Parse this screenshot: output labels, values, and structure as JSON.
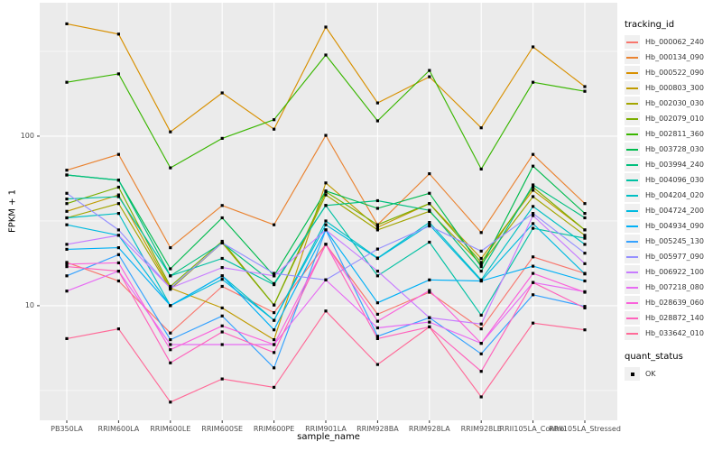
{
  "figure": {
    "background": "#FFFFFF",
    "panel_background": "#EBEBEB",
    "gridline_color": "#FFFFFF",
    "point_color": "#000000",
    "point_shape": "square"
  },
  "axes": {
    "x": {
      "label": "sample_name"
    },
    "y": {
      "label": "FPKM + 1",
      "scale": "log10",
      "tick_labels": [
        "100",
        "10"
      ],
      "tick_values": [
        100,
        10
      ]
    }
  },
  "legend": {
    "tracking_title": "tracking_id",
    "quant_title": "quant_status",
    "quant_items": [
      {
        "label": "OK",
        "marker": "black-square"
      }
    ]
  },
  "chart_data": {
    "type": "line",
    "title": "",
    "xlabel": "sample_name",
    "ylabel": "FPKM + 1",
    "y_scale": "log10",
    "ylim": [
      2.1,
      610
    ],
    "grid": true,
    "legend_position": "right",
    "point_marker": "black-square",
    "categories": [
      "PB350LA",
      "RRIM600LA",
      "RRIM600LE",
      "RRIM600SE",
      "RRIM600PE",
      "RRIM901LA",
      "RRIM928BA",
      "RRIM928LA",
      "RRIM928LE",
      "RRII105LA_Control",
      "RRII105LA_Stressed"
    ],
    "series": [
      {
        "name": "Hb_000062_240",
        "color": "#F8766D",
        "values": [
          18,
          14,
          6.9,
          13,
          9.1,
          23,
          8.9,
          12,
          7.3,
          19.4,
          15.5
        ]
      },
      {
        "name": "Hb_000134_090",
        "color": "#EA8331",
        "values": [
          63,
          78,
          22,
          39,
          30,
          101,
          30,
          60,
          27,
          78,
          40
        ]
      },
      {
        "name": "Hb_000522_090",
        "color": "#D89000",
        "values": [
          460,
          400,
          106,
          180,
          110,
          440,
          157,
          224,
          112,
          336,
          196
        ]
      },
      {
        "name": "Hb_000803_300",
        "color": "#C09B00",
        "values": [
          36,
          45,
          12.7,
          9.7,
          6.3,
          53,
          29,
          40,
          19,
          48,
          28
        ]
      },
      {
        "name": "Hb_002030_030",
        "color": "#A3A500",
        "values": [
          33,
          40,
          12.5,
          23.5,
          10.1,
          45,
          28,
          36,
          17.5,
          44,
          26
        ]
      },
      {
        "name": "Hb_002079_010",
        "color": "#7CAE00",
        "values": [
          40,
          50,
          13,
          24,
          10.1,
          47,
          30,
          40,
          18,
          50,
          28
        ]
      },
      {
        "name": "Hb_002811_360",
        "color": "#39B600",
        "values": [
          208,
          233,
          65,
          97,
          125,
          301,
          123,
          244,
          64,
          208,
          184
        ]
      },
      {
        "name": "Hb_003728_030",
        "color": "#00BB4E",
        "values": [
          59,
          55,
          16.5,
          33,
          15,
          47.5,
          37.5,
          46,
          17,
          66.5,
          35
        ]
      },
      {
        "name": "Hb_003994_240",
        "color": "#00BF7D",
        "values": [
          59,
          55,
          15,
          23.5,
          13.5,
          39,
          41.6,
          36.5,
          16,
          51.6,
          33
        ]
      },
      {
        "name": "Hb_004096_030",
        "color": "#00C1A3",
        "values": [
          42.6,
          44,
          15,
          19,
          13.3,
          39,
          15,
          23.7,
          8.8,
          28.6,
          25
        ]
      },
      {
        "name": "Hb_004204_020",
        "color": "#00BFC4",
        "values": [
          33,
          35,
          10,
          15,
          8.2,
          31.6,
          19.1,
          31,
          14.2,
          38.5,
          23
        ]
      },
      {
        "name": "Hb_004724_200",
        "color": "#00BAE0",
        "values": [
          30,
          26,
          10,
          14.3,
          8.2,
          30,
          19,
          30,
          14,
          30.5,
          15.4
        ]
      },
      {
        "name": "Hb_004934_090",
        "color": "#00B0F6",
        "values": [
          21.5,
          22,
          10,
          15,
          7.2,
          28,
          10.4,
          14.2,
          14,
          17.1,
          14
        ]
      },
      {
        "name": "Hb_005245_130",
        "color": "#35A2FF",
        "values": [
          15,
          20,
          6.3,
          8.7,
          4.3,
          28,
          6.6,
          8.5,
          5.2,
          11.6,
          9.9
        ]
      },
      {
        "name": "Hb_005977_090",
        "color": "#9590FF",
        "values": [
          46,
          28,
          12.7,
          23.5,
          15.5,
          14.2,
          21.6,
          29.5,
          21,
          35,
          20.4
        ]
      },
      {
        "name": "Hb_006922_100",
        "color": "#C77CFF",
        "values": [
          23,
          26,
          12.7,
          16.8,
          15,
          28,
          16,
          8.5,
          7.8,
          34,
          17.7
        ]
      },
      {
        "name": "Hb_007218_080",
        "color": "#E76BF3",
        "values": [
          12.2,
          16,
          5.9,
          5.9,
          5.9,
          14.2,
          7.4,
          8,
          6,
          13.7,
          12.1
        ]
      },
      {
        "name": "Hb_028639_060",
        "color": "#FA62DB",
        "values": [
          17.6,
          17.9,
          5.5,
          7.6,
          5.9,
          23,
          8.1,
          12.3,
          6,
          15.5,
          12
        ]
      },
      {
        "name": "Hb_028872_140",
        "color": "#FF62BC",
        "values": [
          17,
          16,
          4.6,
          7,
          5.3,
          23,
          6.4,
          7.5,
          4.1,
          13.7,
          9.7
        ]
      },
      {
        "name": "Hb_033642_010",
        "color": "#FF6A98",
        "values": [
          6.4,
          7.3,
          2.7,
          3.7,
          3.3,
          9.3,
          4.5,
          7.5,
          2.9,
          7.9,
          7.2
        ]
      }
    ]
  }
}
